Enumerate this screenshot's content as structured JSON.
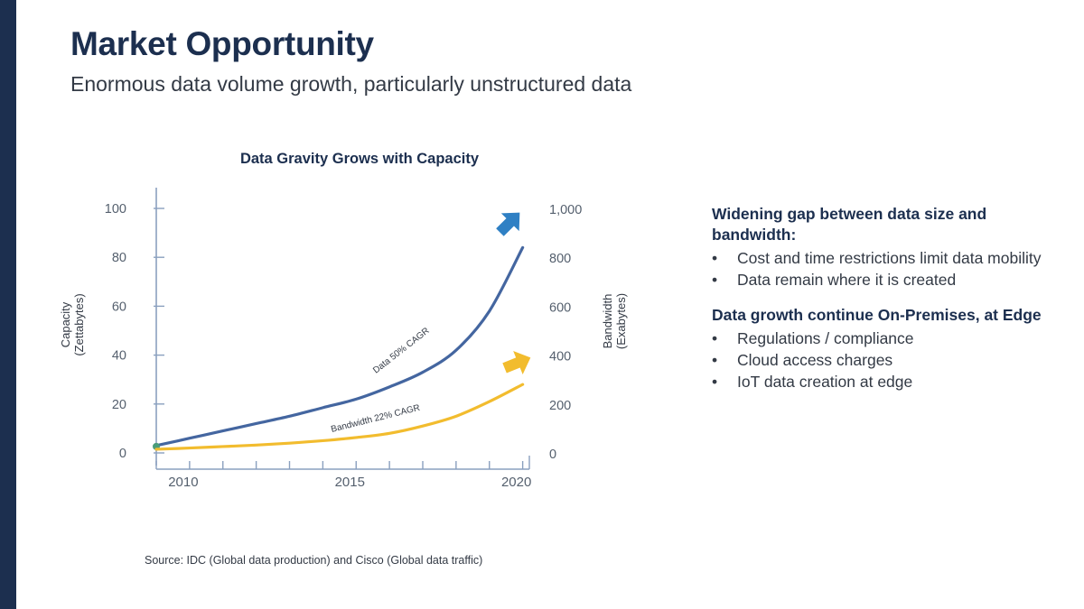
{
  "slide": {
    "title": "Market Opportunity",
    "subtitle": "Enormous data volume growth, particularly unstructured data",
    "source": "Source: IDC (Global data production) and Cisco (Global data traffic)"
  },
  "chart_data": {
    "type": "line",
    "title": "Data Gravity Grows with Capacity",
    "x": [
      2009,
      2010,
      2011,
      2012,
      2013,
      2014,
      2015,
      2016,
      2017,
      2018,
      2019,
      2020
    ],
    "xlim": [
      2009,
      2020.2
    ],
    "xticks": [
      "2010",
      "2015",
      "2020"
    ],
    "y_left": {
      "label_line1": "Capacity",
      "label_line2": "(Zettabytes)",
      "ylim": [
        0,
        100
      ],
      "ticks": [
        "0",
        "20",
        "40",
        "60",
        "80",
        "100"
      ]
    },
    "y_right": {
      "label_line1": "Bandwidth",
      "label_line2": "(Exabytes)",
      "ylim": [
        0,
        1000
      ],
      "ticks": [
        "0",
        "200",
        "400",
        "600",
        "800",
        "1,000"
      ]
    },
    "series": [
      {
        "name": "Data 50% CAGR",
        "axis": "left",
        "color": "#4466a0",
        "arrow_color": "#2f80c4",
        "values": [
          3,
          6,
          9,
          12,
          15,
          18.5,
          22,
          27,
          33,
          42,
          58,
          84
        ]
      },
      {
        "name": "Bandwidth 22% CAGR",
        "axis": "left",
        "color": "#f2bc2e",
        "arrow_color": "#f2bc2e",
        "values": [
          1.5,
          2,
          2.6,
          3.2,
          4,
          5,
          6.3,
          8,
          11,
          15,
          21,
          28
        ]
      }
    ],
    "grid": false,
    "legend": "none"
  },
  "bullets": {
    "group1": {
      "heading": "Widening gap between data size and bandwidth:",
      "items": [
        "Cost and time restrictions limit data mobility",
        "Data remain where it is created"
      ]
    },
    "group2": {
      "heading": "Data growth continue On-Premises, at Edge",
      "items": [
        "Regulations / compliance",
        "Cloud access charges",
        "IoT data creation at edge"
      ]
    },
    "bullet_char": "•"
  }
}
